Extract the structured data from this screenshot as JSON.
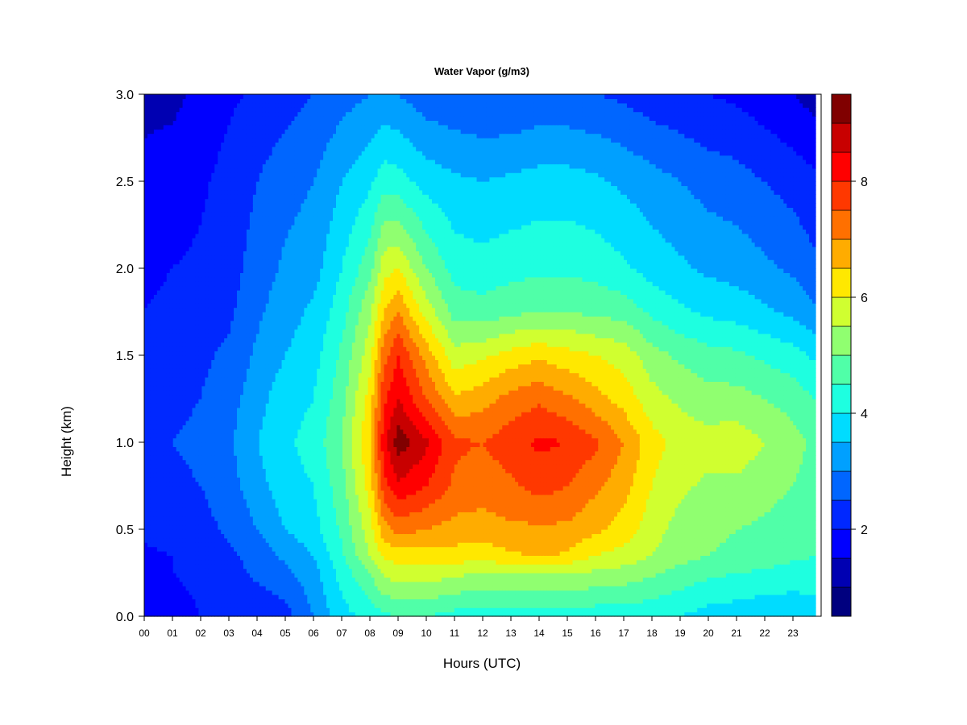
{
  "chart_data": {
    "type": "heatmap",
    "title": "Water Vapor (g/m3)",
    "xlabel": "Hours (UTC)",
    "ylabel": "Height (km)",
    "xlim": [
      0,
      24
    ],
    "ylim": [
      0,
      3.0
    ],
    "x_ticks": [
      "00",
      "01",
      "02",
      "03",
      "04",
      "05",
      "06",
      "07",
      "08",
      "09",
      "10",
      "11",
      "12",
      "13",
      "14",
      "15",
      "16",
      "17",
      "18",
      "19",
      "20",
      "21",
      "22",
      "23"
    ],
    "y_ticks": [
      "0.0",
      "0.5",
      "1.0",
      "1.5",
      "2.0",
      "2.5",
      "3.0"
    ],
    "colorbar": {
      "range": [
        0.5,
        9.5
      ],
      "tick_labels": [
        "2",
        "4",
        "6",
        "8"
      ],
      "levels": [
        {
          "from": 0.5,
          "to": 1.0,
          "color": "#00007f"
        },
        {
          "from": 1.0,
          "to": 1.5,
          "color": "#0000b2"
        },
        {
          "from": 1.5,
          "to": 2.0,
          "color": "#0000ff"
        },
        {
          "from": 2.0,
          "to": 2.5,
          "color": "#0028ff"
        },
        {
          "from": 2.5,
          "to": 3.0,
          "color": "#0066ff"
        },
        {
          "from": 3.0,
          "to": 3.5,
          "color": "#00a0ff"
        },
        {
          "from": 3.5,
          "to": 4.0,
          "color": "#00dcff"
        },
        {
          "from": 4.0,
          "to": 4.5,
          "color": "#1effe0"
        },
        {
          "from": 4.5,
          "to": 5.0,
          "color": "#50ffa8"
        },
        {
          "from": 5.0,
          "to": 5.5,
          "color": "#90ff70"
        },
        {
          "from": 5.5,
          "to": 6.0,
          "color": "#d0ff30"
        },
        {
          "from": 6.0,
          "to": 6.5,
          "color": "#ffe800"
        },
        {
          "from": 6.5,
          "to": 7.0,
          "color": "#ffac00"
        },
        {
          "from": 7.0,
          "to": 7.5,
          "color": "#ff7000"
        },
        {
          "from": 7.5,
          "to": 8.0,
          "color": "#ff3800"
        },
        {
          "from": 8.0,
          "to": 8.5,
          "color": "#ff0000"
        },
        {
          "from": 8.5,
          "to": 9.0,
          "color": "#c80000"
        },
        {
          "from": 9.0,
          "to": 9.5,
          "color": "#800000"
        }
      ]
    },
    "time_hours": [
      0,
      1,
      2,
      3,
      4,
      5,
      6,
      7,
      8,
      8.5,
      9,
      10,
      11,
      12,
      13,
      14,
      15,
      16,
      17,
      18,
      19,
      20,
      21,
      22,
      23,
      23.8
    ],
    "heights_km": [
      0.0,
      0.25,
      0.35,
      0.5,
      0.75,
      1.0,
      1.25,
      1.5,
      1.75,
      2.0,
      2.5,
      3.0
    ],
    "values_g_m3": [
      [
        1.6,
        1.8,
        1.9,
        2.1,
        2.3,
        2.4,
        2.3,
        2.1,
        2.0,
        1.9,
        1.6,
        1.4
      ],
      [
        1.8,
        2.0,
        2.0,
        2.2,
        2.4,
        2.5,
        2.4,
        2.2,
        2.1,
        2.0,
        1.7,
        1.4
      ],
      [
        2.0,
        2.1,
        2.2,
        2.3,
        2.5,
        2.6,
        2.5,
        2.4,
        2.2,
        2.1,
        1.9,
        1.6
      ],
      [
        2.1,
        2.3,
        2.4,
        2.6,
        2.8,
        2.9,
        2.8,
        2.6,
        2.4,
        2.3,
        2.2,
        1.9
      ],
      [
        2.1,
        2.6,
        2.7,
        3.0,
        3.3,
        3.5,
        3.3,
        3.1,
        2.9,
        2.7,
        2.5,
        2.1
      ],
      [
        2.3,
        2.9,
        3.1,
        3.5,
        3.8,
        3.9,
        3.8,
        3.5,
        3.3,
        3.1,
        2.8,
        2.3
      ],
      [
        3.0,
        3.3,
        3.5,
        3.8,
        4.0,
        4.2,
        4.0,
        3.8,
        3.6,
        3.3,
        3.0,
        2.5
      ],
      [
        3.8,
        4.2,
        4.4,
        4.6,
        4.8,
        5.0,
        4.8,
        4.6,
        4.3,
        4.0,
        3.5,
        2.8
      ],
      [
        4.2,
        5.0,
        5.5,
        5.8,
        6.2,
        6.5,
        6.2,
        5.8,
        5.4,
        4.8,
        3.9,
        3.0
      ],
      [
        4.4,
        5.6,
        6.1,
        6.8,
        7.8,
        8.3,
        7.9,
        7.3,
        6.5,
        5.8,
        4.3,
        3.1
      ],
      [
        4.5,
        5.8,
        6.2,
        7.2,
        8.4,
        9.3,
        8.5,
        8.0,
        7.0,
        6.0,
        4.2,
        3.0
      ],
      [
        4.5,
        5.8,
        6.2,
        7.0,
        8.0,
        8.6,
        7.5,
        6.8,
        5.8,
        5.0,
        3.8,
        2.7
      ],
      [
        4.3,
        5.6,
        6.3,
        6.8,
        7.4,
        7.6,
        6.6,
        5.7,
        4.8,
        4.3,
        3.6,
        2.6
      ],
      [
        4.3,
        5.5,
        6.2,
        6.8,
        7.2,
        7.5,
        6.8,
        5.9,
        4.7,
        4.2,
        3.5,
        2.5
      ],
      [
        4.3,
        5.5,
        6.4,
        6.9,
        7.4,
        7.8,
        7.2,
        6.2,
        4.9,
        4.3,
        3.6,
        2.5
      ],
      [
        4.3,
        5.5,
        6.6,
        6.9,
        7.7,
        8.1,
        7.4,
        6.4,
        5.0,
        4.4,
        3.7,
        2.6
      ],
      [
        4.3,
        5.5,
        6.4,
        6.9,
        7.5,
        8.0,
        7.1,
        6.2,
        5.0,
        4.4,
        3.7,
        2.6
      ],
      [
        4.2,
        5.4,
        6.0,
        6.6,
        7.1,
        7.6,
        6.7,
        6.0,
        4.9,
        4.3,
        3.6,
        2.5
      ],
      [
        4.2,
        5.3,
        5.8,
        6.3,
        6.7,
        7.0,
        6.3,
        5.8,
        4.8,
        4.1,
        3.4,
        2.4
      ],
      [
        4.1,
        5.1,
        5.5,
        5.7,
        6.0,
        6.2,
        5.7,
        5.2,
        4.4,
        3.8,
        3.2,
        2.2
      ],
      [
        4.0,
        4.8,
        5.2,
        5.3,
        5.6,
        5.8,
        5.4,
        4.9,
        4.1,
        3.6,
        3.0,
        2.1
      ],
      [
        3.8,
        4.6,
        5.0,
        5.1,
        5.4,
        5.7,
        5.2,
        4.7,
        3.9,
        3.4,
        2.8,
        2.0
      ],
      [
        3.7,
        4.5,
        4.9,
        5.0,
        5.4,
        5.8,
        5.2,
        4.6,
        3.8,
        3.3,
        2.7,
        1.9
      ],
      [
        3.6,
        4.4,
        4.8,
        4.9,
        5.2,
        5.5,
        5.0,
        4.4,
        3.6,
        3.1,
        2.5,
        1.7
      ],
      [
        3.6,
        4.3,
        4.6,
        4.7,
        5.0,
        5.2,
        4.8,
        4.2,
        3.4,
        2.9,
        2.3,
        1.5
      ],
      [
        3.7,
        4.3,
        4.5,
        4.5,
        4.7,
        4.9,
        4.5,
        3.9,
        3.1,
        2.6,
        2.1,
        1.3
      ]
    ]
  }
}
